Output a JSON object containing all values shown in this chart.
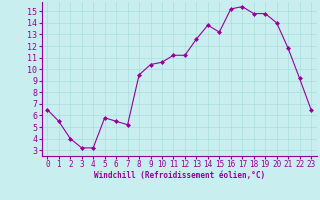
{
  "x": [
    0,
    1,
    2,
    3,
    4,
    5,
    6,
    7,
    8,
    9,
    10,
    11,
    12,
    13,
    14,
    15,
    16,
    17,
    18,
    19,
    20,
    21,
    22,
    23
  ],
  "y": [
    6.5,
    5.5,
    4.0,
    3.2,
    3.2,
    5.8,
    5.5,
    5.2,
    9.5,
    10.4,
    10.6,
    11.2,
    11.2,
    12.6,
    13.8,
    13.2,
    15.2,
    15.4,
    14.8,
    14.8,
    14.0,
    11.8,
    9.2,
    6.5
  ],
  "line_color": "#990099",
  "marker": "D",
  "marker_size": 2,
  "bg_color": "#c8eef0",
  "grid_color": "#aadddd",
  "xlabel": "Windchill (Refroidissement éolien,°C)",
  "xlabel_color": "#990099",
  "tick_color": "#990099",
  "spine_color": "#990099",
  "ylim": [
    2.5,
    15.8
  ],
  "xlim": [
    -0.5,
    23.5
  ],
  "yticks": [
    3,
    4,
    5,
    6,
    7,
    8,
    9,
    10,
    11,
    12,
    13,
    14,
    15
  ],
  "xticks": [
    0,
    1,
    2,
    3,
    4,
    5,
    6,
    7,
    8,
    9,
    10,
    11,
    12,
    13,
    14,
    15,
    16,
    17,
    18,
    19,
    20,
    21,
    22,
    23
  ],
  "tick_fontsize": 5.5,
  "xlabel_fontsize": 5.5
}
